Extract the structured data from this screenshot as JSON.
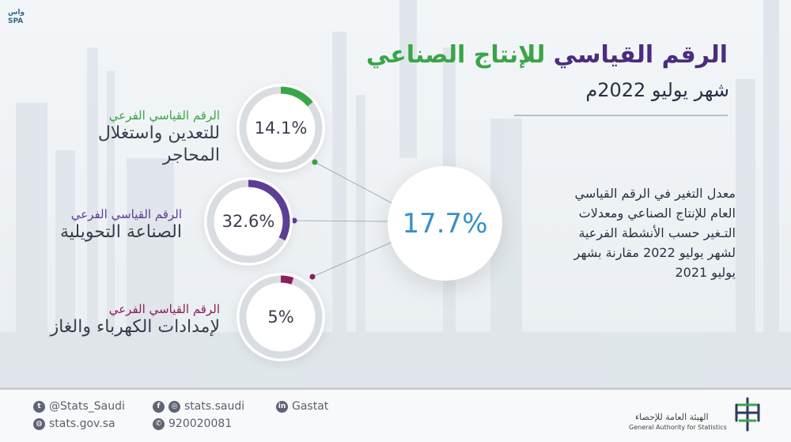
{
  "title": {
    "part1": "الرقم القياسي",
    "part2": "للإنتاج الصناعي"
  },
  "subtitle": "شهر يوليو  2022م",
  "rings": [
    {
      "value": "14.1%",
      "fraction": 0.141,
      "label_small": "الرقم القياسي الفرعي",
      "label_line1": "للتعدين واستغلال",
      "label_line2": "المحاجر",
      "color": "#3aa548"
    },
    {
      "value": "32.6%",
      "fraction": 0.326,
      "label_small": "الرقم القياسي الفرعي",
      "label_line1": "الصناعة التحويلية",
      "label_line2": "",
      "color": "#5b3e96"
    },
    {
      "value": "5%",
      "fraction": 0.05,
      "label_small": "الرقم القياسي الفرعي",
      "label_line1": "لإمدادات الكهرباء والغاز",
      "label_line2": "",
      "color": "#8b1f5c"
    }
  ],
  "center_value": "17.7%",
  "description": [
    "معدل التغير في الرقم القياسي",
    "العام للإنتاج الصناعي ومعدلات",
    "التـغير حسب الأنشطة الفرعية",
    "لشهر يوليو 2022 مقارنة بشهر",
    "يوليو  2021"
  ],
  "footer": {
    "twitter": "@Stats_Saudi",
    "instagram": "stats.saudi",
    "linkedin": "Gastat",
    "website": "stats.gov.sa",
    "phone": "920020081",
    "authority_ar": "الهيئة العامة للإحصاء",
    "authority_en": "General Authority for Statistics"
  },
  "logo_text": "واس SPA",
  "icons": {
    "twitter": "twitter-icon",
    "facebook": "facebook-icon",
    "instagram": "instagram-icon",
    "linkedin": "linkedin-icon",
    "globe": "globe-icon",
    "phone": "phone-icon"
  }
}
